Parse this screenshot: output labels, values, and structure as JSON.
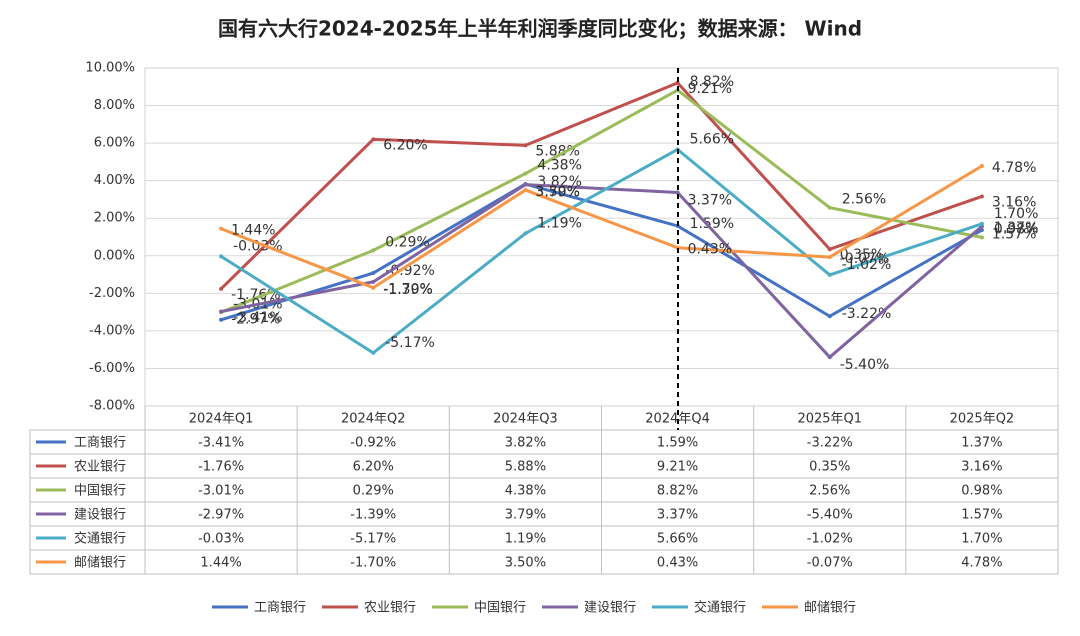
{
  "chart_data": {
    "type": "line",
    "title": "国有六大行2024-2025年上半年利润季度同比变化；数据来源： Wind",
    "categories": [
      "2024年Q1",
      "2024年Q2",
      "2024年Q3",
      "2024年Q4",
      "2025年Q1",
      "2025年Q2"
    ],
    "ylim": [
      -8,
      10
    ],
    "yticks": [
      {
        "value": -8,
        "label": "-8.00%"
      },
      {
        "value": -6,
        "label": "-6.00%"
      },
      {
        "value": -4,
        "label": "-4.00%"
      },
      {
        "value": -2,
        "label": "-2.00%"
      },
      {
        "value": 0,
        "label": "0.00%"
      },
      {
        "value": 2,
        "label": "2.00%"
      },
      {
        "value": 4,
        "label": "4.00%"
      },
      {
        "value": 6,
        "label": "6.00%"
      },
      {
        "value": 8,
        "label": "8.00%"
      },
      {
        "value": 10,
        "label": "10.00%"
      }
    ],
    "grid": true,
    "legend": "bottom",
    "series": [
      {
        "name": "工商银行",
        "color": "#4472c4",
        "values": [
          -3.41,
          -0.92,
          3.82,
          1.59,
          -3.22,
          1.37
        ],
        "value_labels": [
          "-3.41%",
          "-0.92%",
          "3.82%",
          "1.59%",
          "-3.22%",
          "1.37%"
        ]
      },
      {
        "name": "农业银行",
        "color": "#c0504d",
        "values": [
          -1.76,
          6.2,
          5.88,
          9.21,
          0.35,
          3.16
        ],
        "value_labels": [
          "-1.76%",
          "6.20%",
          "5.88%",
          "9.21%",
          "0.35%",
          "3.16%"
        ]
      },
      {
        "name": "中国银行",
        "color": "#9bbb59",
        "values": [
          -3.01,
          0.29,
          4.38,
          8.82,
          2.56,
          0.98
        ],
        "value_labels": [
          "-3.01%",
          "0.29%",
          "4.38%",
          "8.82%",
          "2.56%",
          "0.98%"
        ]
      },
      {
        "name": "建设银行",
        "color": "#8064a2",
        "values": [
          -2.97,
          -1.39,
          3.79,
          3.37,
          -5.4,
          1.57
        ],
        "value_labels": [
          "-2.97%",
          "-1.39%",
          "3.79%",
          "3.37%",
          "-5.40%",
          "1.57%"
        ]
      },
      {
        "name": "交通银行",
        "color": "#4bacc6",
        "values": [
          -0.03,
          -5.17,
          1.19,
          5.66,
          -1.02,
          1.7
        ],
        "value_labels": [
          "-0.03%",
          "-5.17%",
          "1.19%",
          "5.66%",
          "-1.02%",
          "1.70%"
        ]
      },
      {
        "name": "邮储银行",
        "color": "#f79646",
        "values": [
          1.44,
          -1.7,
          3.5,
          0.43,
          -0.07,
          4.78
        ],
        "value_labels": [
          "1.44%",
          "-1.70%",
          "3.50%",
          "0.43%",
          "-0.07%",
          "4.78%"
        ]
      }
    ]
  }
}
